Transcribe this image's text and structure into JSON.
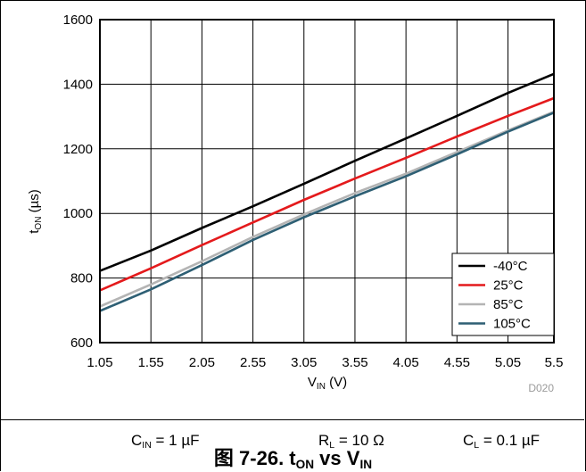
{
  "chart_data": {
    "type": "line",
    "title": "",
    "xlabel": "V_IN (V)",
    "ylabel": "t_ON (µs)",
    "xlim": [
      1.05,
      5.5
    ],
    "ylim": [
      600,
      1600
    ],
    "xticks": [
      "1.05",
      "1.55",
      "2.05",
      "2.55",
      "3.05",
      "3.55",
      "4.05",
      "4.55",
      "5.05",
      "5.5"
    ],
    "yticks": [
      "600",
      "800",
      "1000",
      "1200",
      "1400",
      "1600"
    ],
    "grid": true,
    "legend_position": "bottom-right",
    "series": [
      {
        "name": "-40°C",
        "color": "#000000",
        "x": [
          1.05,
          1.55,
          2.05,
          2.55,
          3.05,
          3.55,
          4.05,
          4.55,
          5.05,
          5.5
        ],
        "y": [
          822,
          885,
          955,
          1022,
          1092,
          1163,
          1232,
          1302,
          1373,
          1432
        ]
      },
      {
        "name": "25°C",
        "color": "#e41a1c",
        "x": [
          1.05,
          1.55,
          2.05,
          2.55,
          3.05,
          3.55,
          4.05,
          4.55,
          5.05,
          5.5
        ],
        "y": [
          762,
          830,
          902,
          972,
          1042,
          1108,
          1172,
          1238,
          1302,
          1357
        ]
      },
      {
        "name": "85°C",
        "color": "#b4b4b4",
        "x": [
          1.05,
          1.55,
          2.05,
          2.55,
          3.05,
          3.55,
          4.05,
          4.55,
          5.05,
          5.5
        ],
        "y": [
          712,
          780,
          852,
          927,
          997,
          1063,
          1123,
          1190,
          1257,
          1315
        ]
      },
      {
        "name": "105°C",
        "color": "#2e5f74",
        "x": [
          1.05,
          1.55,
          2.05,
          2.55,
          3.05,
          3.55,
          4.05,
          4.55,
          5.05,
          5.5
        ],
        "y": [
          698,
          765,
          840,
          918,
          988,
          1053,
          1115,
          1183,
          1253,
          1312
        ]
      }
    ]
  },
  "labels": {
    "ylabel_main": "t",
    "ylabel_sub": "ON",
    "ylabel_unit": " (µs)",
    "xlabel_main": "V",
    "xlabel_sub": "IN",
    "xlabel_unit": " (V)",
    "code": "D020"
  },
  "conditions": {
    "cin_main": "C",
    "cin_sub": "IN",
    "cin_value": " = 1 µF",
    "rl_main": "R",
    "rl_sub": "L",
    "rl_value": " = 10 Ω",
    "cl_main": "C",
    "cl_sub": "L",
    "cl_value": " = 0.1 µF"
  },
  "caption": {
    "prefix": "图 7-26. t",
    "sub1": "ON",
    "middle": " vs V",
    "sub2": "IN"
  }
}
